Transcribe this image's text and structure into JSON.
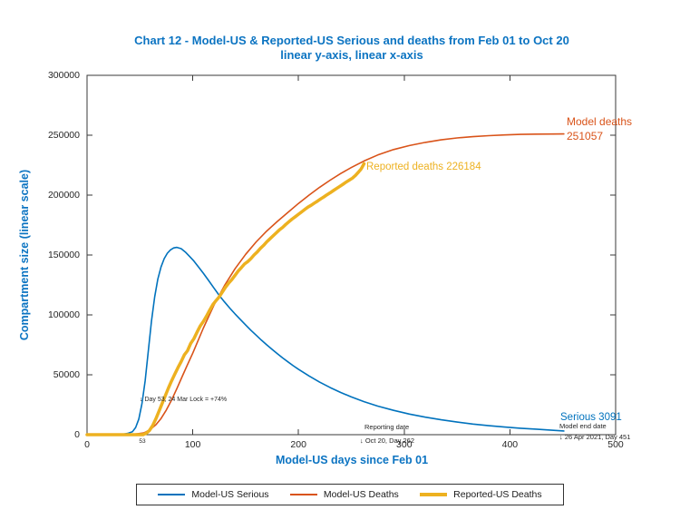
{
  "figure": {
    "title_line1": "Chart 12 - Model-US & Reported-US Serious and deaths from Feb 01 to Oct 20",
    "title_line2": "linear y-axis, linear x-axis",
    "title_color": "#0C74C2"
  },
  "chart_data": {
    "type": "line",
    "title": "Chart 12 - Model-US & Reported-US Serious and deaths from Feb 01 to Oct 20 — linear y-axis, linear x-axis",
    "xlabel": "Model-US days since Feb 01",
    "ylabel": "Compartment size (linear scale)",
    "xlim": [
      0,
      500
    ],
    "ylim": [
      0,
      300000
    ],
    "xticks": [
      0,
      100,
      200,
      300,
      400,
      500
    ],
    "yticks": [
      0,
      50000,
      100000,
      150000,
      200000,
      250000,
      300000
    ],
    "grid": false,
    "axis_color": "#3A3A3A",
    "tick_label_color": "#262626",
    "legend_position": "bottom-center",
    "series": [
      {
        "name": "Model-US Serious",
        "color": "#0072BD",
        "width": 1.6,
        "points": [
          [
            0,
            0
          ],
          [
            20,
            0
          ],
          [
            30,
            150
          ],
          [
            35,
            500
          ],
          [
            39,
            1200
          ],
          [
            43,
            2500
          ],
          [
            46,
            6000
          ],
          [
            49,
            13000
          ],
          [
            52,
            26000
          ],
          [
            55,
            45000
          ],
          [
            58,
            70000
          ],
          [
            61,
            95000
          ],
          [
            64,
            115000
          ],
          [
            67,
            130000
          ],
          [
            70,
            140000
          ],
          [
            73,
            147000
          ],
          [
            76,
            151500
          ],
          [
            79,
            154300
          ],
          [
            82,
            155900
          ],
          [
            85,
            156400
          ],
          [
            89,
            155300
          ],
          [
            93,
            152500
          ],
          [
            97,
            148800
          ],
          [
            101,
            145000
          ],
          [
            105,
            140500
          ],
          [
            110,
            134800
          ],
          [
            115,
            128700
          ],
          [
            120,
            122500
          ],
          [
            125,
            116300
          ],
          [
            130,
            110800
          ],
          [
            135,
            105700
          ],
          [
            140,
            100800
          ],
          [
            145,
            96100
          ],
          [
            150,
            91600
          ],
          [
            155,
            87200
          ],
          [
            160,
            83000
          ],
          [
            165,
            78900
          ],
          [
            170,
            75000
          ],
          [
            175,
            71200
          ],
          [
            180,
            67600
          ],
          [
            185,
            64100
          ],
          [
            190,
            60800
          ],
          [
            195,
            57600
          ],
          [
            200,
            54600
          ],
          [
            210,
            49000
          ],
          [
            220,
            43900
          ],
          [
            230,
            39300
          ],
          [
            240,
            35200
          ],
          [
            250,
            31500
          ],
          [
            262,
            27600
          ],
          [
            275,
            23900
          ],
          [
            290,
            20300
          ],
          [
            305,
            17200
          ],
          [
            320,
            14600
          ],
          [
            335,
            12400
          ],
          [
            350,
            10500
          ],
          [
            365,
            8900
          ],
          [
            380,
            7500
          ],
          [
            395,
            6400
          ],
          [
            410,
            5400
          ],
          [
            425,
            4600
          ],
          [
            438,
            3900
          ],
          [
            451,
            3091
          ]
        ]
      },
      {
        "name": "Model-US Deaths",
        "color": "#D95319",
        "width": 1.6,
        "points": [
          [
            0,
            0
          ],
          [
            30,
            0
          ],
          [
            38,
            100
          ],
          [
            43,
            300
          ],
          [
            48,
            800
          ],
          [
            53,
            1400
          ],
          [
            55,
            2000
          ],
          [
            60,
            4500
          ],
          [
            65,
            8200
          ],
          [
            70,
            13500
          ],
          [
            75,
            20500
          ],
          [
            80,
            29000
          ],
          [
            85,
            38500
          ],
          [
            90,
            48500
          ],
          [
            95,
            58500
          ],
          [
            100,
            68000
          ],
          [
            110,
            89000
          ],
          [
            120,
            108000
          ],
          [
            130,
            124500
          ],
          [
            140,
            138500
          ],
          [
            150,
            150500
          ],
          [
            160,
            161000
          ],
          [
            170,
            170000
          ],
          [
            180,
            178000
          ],
          [
            190,
            185500
          ],
          [
            200,
            193000
          ],
          [
            210,
            200000
          ],
          [
            220,
            206500
          ],
          [
            230,
            212500
          ],
          [
            240,
            218000
          ],
          [
            250,
            223000
          ],
          [
            262,
            228500
          ],
          [
            275,
            233500
          ],
          [
            290,
            238000
          ],
          [
            305,
            241400
          ],
          [
            320,
            244000
          ],
          [
            335,
            246100
          ],
          [
            350,
            247700
          ],
          [
            365,
            248800
          ],
          [
            380,
            249600
          ],
          [
            395,
            250200
          ],
          [
            410,
            250650
          ],
          [
            425,
            250900
          ],
          [
            440,
            251020
          ],
          [
            451,
            251057
          ]
        ]
      },
      {
        "name": "Reported-US Deaths",
        "color": "#EDB120",
        "width": 3.5,
        "points": [
          [
            0,
            0
          ],
          [
            40,
            0
          ],
          [
            50,
            0
          ],
          [
            53,
            0
          ],
          [
            56,
            1200
          ],
          [
            59,
            3500
          ],
          [
            62,
            7500
          ],
          [
            65,
            13000
          ],
          [
            68,
            19500
          ],
          [
            71,
            26000
          ],
          [
            74,
            32500
          ],
          [
            77,
            39000
          ],
          [
            80,
            45000
          ],
          [
            83,
            50500
          ],
          [
            86,
            56000
          ],
          [
            89,
            61000
          ],
          [
            92,
            66600
          ],
          [
            95,
            70100
          ],
          [
            98,
            76100
          ],
          [
            101,
            80100
          ],
          [
            104,
            85500
          ],
          [
            107,
            90700
          ],
          [
            110,
            94500
          ],
          [
            113,
            99000
          ],
          [
            116,
            104000
          ],
          [
            119,
            108600
          ],
          [
            122,
            112000
          ],
          [
            125,
            115100
          ],
          [
            128,
            119000
          ],
          [
            131,
            123100
          ],
          [
            134,
            126500
          ],
          [
            137,
            129500
          ],
          [
            140,
            133000
          ],
          [
            143,
            136600
          ],
          [
            146,
            139500
          ],
          [
            149,
            142500
          ],
          [
            152,
            144500
          ],
          [
            155,
            147000
          ],
          [
            158,
            150000
          ],
          [
            161,
            152500
          ],
          [
            164,
            155500
          ],
          [
            167,
            158000
          ],
          [
            170,
            161000
          ],
          [
            173,
            163500
          ],
          [
            176,
            166000
          ],
          [
            179,
            168500
          ],
          [
            182,
            171000
          ],
          [
            185,
            173000
          ],
          [
            188,
            175500
          ],
          [
            191,
            177800
          ],
          [
            194,
            180000
          ],
          [
            197,
            182000
          ],
          [
            200,
            184000
          ],
          [
            203,
            186000
          ],
          [
            206,
            188000
          ],
          [
            209,
            190000
          ],
          [
            212,
            191500
          ],
          [
            215,
            193300
          ],
          [
            218,
            195000
          ],
          [
            221,
            196800
          ],
          [
            224,
            198500
          ],
          [
            227,
            200300
          ],
          [
            230,
            202000
          ],
          [
            233,
            203800
          ],
          [
            236,
            205500
          ],
          [
            239,
            207300
          ],
          [
            242,
            209000
          ],
          [
            245,
            210800
          ],
          [
            248,
            212500
          ],
          [
            251,
            214200
          ],
          [
            254,
            216500
          ],
          [
            257,
            219500
          ],
          [
            259,
            221500
          ],
          [
            260,
            223000
          ],
          [
            262,
            226184
          ]
        ]
      }
    ],
    "annotations": [
      {
        "text": "Model deaths 251057",
        "day": 455,
        "value": 251057
      },
      {
        "text": "Reported deaths 226184",
        "day": 264,
        "value": 226184
      },
      {
        "text": "Serious 3091",
        "day": 451,
        "value": 3091
      },
      {
        "text": "Model end date ↓ 26 Apr 2021, Day 451",
        "day": 451,
        "value": 0
      },
      {
        "text": "Reporting date ↓ Oct 20, Day 262",
        "day": 262,
        "value": 0
      },
      {
        "text": "↓ Day 53, 24 Mar Lock = +74%",
        "day": 53,
        "value": 30000
      }
    ]
  },
  "annotations": {
    "model_deaths_line1": "Model deaths",
    "model_deaths_line2": "251057",
    "reported_deaths": "Reported deaths 226184",
    "serious": "Serious 3091",
    "model_end_line1": "Model end date",
    "model_end_line2": "↓ 26 Apr 2021, Day 451",
    "reporting_line1": "Reporting date",
    "reporting_line2": "↓ Oct 20, Day 262",
    "lockdown": "↓ Day 53, 24 Mar Lock = +74%",
    "day53_tick": "53"
  },
  "colors": {
    "model_serious": "#0072BD",
    "model_deaths": "#D95319",
    "reported_deaths": "#EDB120"
  }
}
